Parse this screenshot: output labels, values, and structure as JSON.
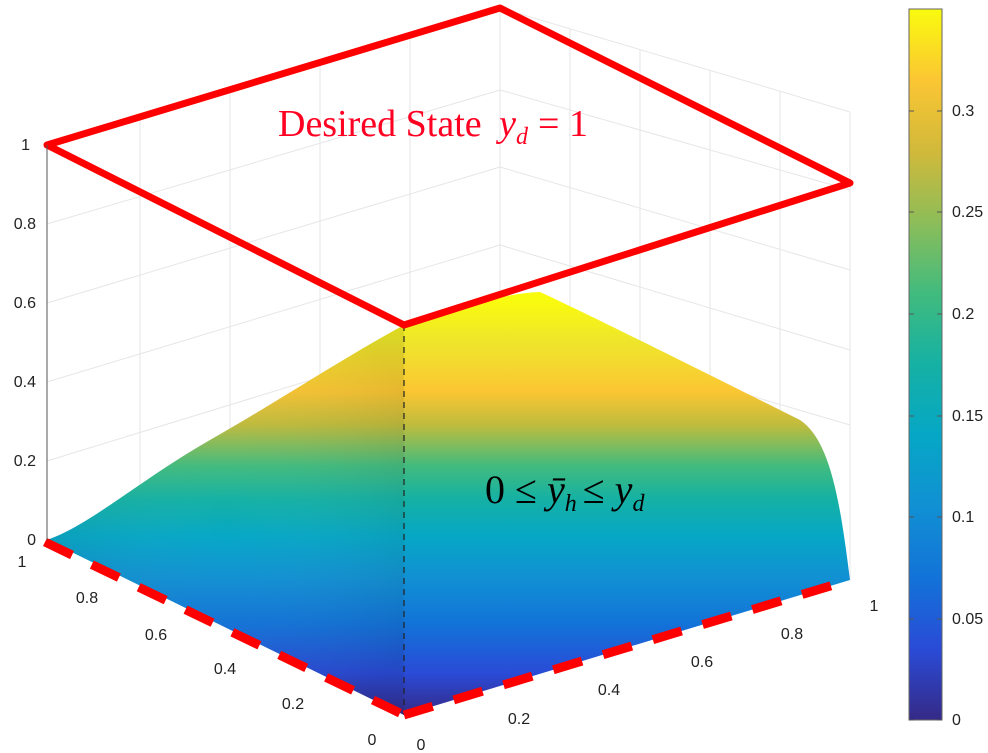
{
  "chart_data": {
    "type": "surface",
    "title": "",
    "xlabel": "",
    "ylabel": "",
    "zlabel": "",
    "xlim": [
      0,
      1
    ],
    "ylim": [
      0,
      1
    ],
    "zlim": [
      0,
      1
    ],
    "x_ticks": [
      "0",
      "0.2",
      "0.4",
      "0.6",
      "0.8",
      "1"
    ],
    "y_ticks": [
      "0",
      "0.2",
      "0.4",
      "0.6",
      "0.8",
      "1"
    ],
    "z_ticks": [
      "0",
      "0.2",
      "0.4",
      "0.6",
      "0.8",
      "1"
    ],
    "surface_peak_z": 0.35,
    "surface_profile": {
      "along_x_at_y0": [
        [
          0,
          0.0
        ],
        [
          0.2,
          0.17
        ],
        [
          0.4,
          0.27
        ],
        [
          0.6,
          0.32
        ],
        [
          0.8,
          0.34
        ],
        [
          0.95,
          0.3
        ],
        [
          1.0,
          0.0
        ]
      ],
      "along_y_at_x1": [
        [
          0,
          0.0
        ],
        [
          0.05,
          0.28
        ],
        [
          0.2,
          0.33
        ],
        [
          0.4,
          0.35
        ],
        [
          0.6,
          0.35
        ],
        [
          0.8,
          0.32
        ],
        [
          1.0,
          0.2
        ]
      ]
    },
    "colorbar": {
      "min": 0,
      "max": 0.35,
      "ticks": [
        "0",
        "0.05",
        "0.1",
        "0.15",
        "0.2",
        "0.25",
        "0.3"
      ],
      "colormap": "parula"
    },
    "desired_state_plane_z": 1,
    "boundary_dashes": "red dashed lines along two base edges",
    "annotations": {
      "desired_state_text": "Desired State",
      "desired_state_math": "y_d = 1",
      "bound_math": "0 ≤ ȳ_h ≤ y_d"
    },
    "grid": true,
    "colors": {
      "desired_state": "#ff0022",
      "boundary": "#ff0000",
      "bound_label": "#000000"
    }
  }
}
